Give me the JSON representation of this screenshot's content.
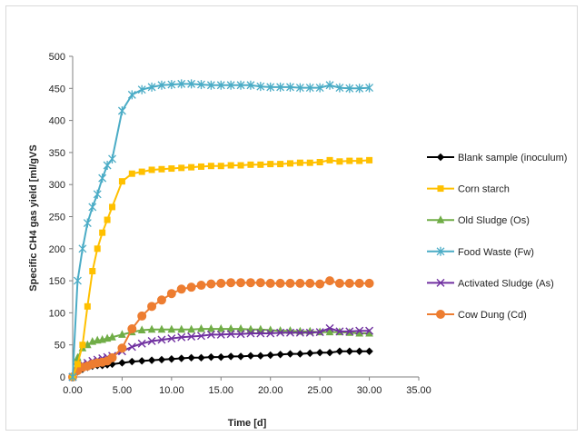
{
  "chart_data": {
    "type": "line",
    "title": "",
    "xlabel": "Time [d]",
    "ylabel": "Specific CH4 gas  yield [ml/gVS",
    "xlim": [
      0,
      35
    ],
    "ylim": [
      0,
      500
    ],
    "xticks": [
      "0.00",
      "5.00",
      "10.00",
      "15.00",
      "20.00",
      "25.00",
      "30.00",
      "35.00"
    ],
    "yticks": [
      "0",
      "50",
      "100",
      "150",
      "200",
      "250",
      "300",
      "350",
      "400",
      "450",
      "500"
    ],
    "grid": false,
    "legend_position": "right",
    "series": [
      {
        "name": "Blank sample (inoculum)",
        "color": "#000000",
        "marker": "diamond",
        "x": [
          0,
          0.5,
          1,
          1.5,
          2,
          2.5,
          3,
          3.5,
          4,
          5,
          6,
          7,
          8,
          9,
          10,
          11,
          12,
          13,
          14,
          15,
          16,
          17,
          18,
          19,
          20,
          21,
          22,
          23,
          24,
          25,
          26,
          27,
          28,
          29,
          30
        ],
        "y": [
          0,
          8,
          12,
          15,
          17,
          18,
          18,
          19,
          20,
          22,
          24,
          25,
          26,
          27,
          28,
          29,
          30,
          30,
          31,
          31,
          32,
          32,
          33,
          33,
          34,
          35,
          36,
          36,
          37,
          38,
          38,
          40,
          40,
          40,
          40
        ]
      },
      {
        "name": "Corn starch",
        "color": "#ffc000",
        "marker": "square",
        "x": [
          0,
          0.5,
          1,
          1.5,
          2,
          2.5,
          3,
          3.5,
          4,
          5,
          6,
          7,
          8,
          9,
          10,
          11,
          12,
          13,
          14,
          15,
          16,
          17,
          18,
          19,
          20,
          21,
          22,
          23,
          24,
          25,
          26,
          27,
          28,
          29,
          30
        ],
        "y": [
          0,
          20,
          50,
          110,
          165,
          200,
          225,
          245,
          265,
          305,
          317,
          320,
          323,
          324,
          325,
          326,
          327,
          328,
          329,
          329,
          330,
          330,
          331,
          331,
          332,
          332,
          333,
          334,
          334,
          335,
          338,
          336,
          337,
          337,
          338
        ]
      },
      {
        "name": "Old Sludge (Os)",
        "color": "#70ad47",
        "marker": "triangle",
        "x": [
          0,
          0.5,
          1,
          1.5,
          2,
          2.5,
          3,
          3.5,
          4,
          5,
          6,
          7,
          8,
          9,
          10,
          11,
          12,
          13,
          14,
          15,
          16,
          17,
          18,
          19,
          20,
          21,
          22,
          23,
          24,
          25,
          26,
          27,
          28,
          29,
          30
        ],
        "y": [
          0,
          30,
          45,
          50,
          55,
          57,
          58,
          60,
          62,
          66,
          70,
          73,
          74,
          74,
          74,
          74,
          74,
          75,
          75,
          75,
          75,
          75,
          74,
          74,
          73,
          72,
          72,
          71,
          71,
          70,
          70,
          70,
          69,
          68,
          68
        ]
      },
      {
        "name": "Food Waste (Fw)",
        "color": "#4bacc6",
        "marker": "star",
        "x": [
          0,
          0.5,
          1,
          1.5,
          2,
          2.5,
          3,
          3.5,
          4,
          5,
          6,
          7,
          8,
          9,
          10,
          11,
          12,
          13,
          14,
          15,
          16,
          17,
          18,
          19,
          20,
          21,
          22,
          23,
          24,
          25,
          26,
          27,
          28,
          29,
          30
        ],
        "y": [
          0,
          150,
          200,
          240,
          265,
          285,
          310,
          330,
          340,
          415,
          440,
          448,
          452,
          455,
          456,
          457,
          457,
          456,
          455,
          455,
          455,
          455,
          455,
          453,
          452,
          452,
          452,
          451,
          451,
          451,
          455,
          451,
          450,
          450,
          451
        ]
      },
      {
        "name": "Activated Sludge (As)",
        "color": "#7030a0",
        "marker": "x",
        "x": [
          0,
          0.5,
          1,
          1.5,
          2,
          2.5,
          3,
          3.5,
          4,
          5,
          6,
          7,
          8,
          9,
          10,
          11,
          12,
          13,
          14,
          15,
          16,
          17,
          18,
          19,
          20,
          21,
          22,
          23,
          24,
          25,
          26,
          27,
          28,
          29,
          30
        ],
        "y": [
          0,
          15,
          20,
          22,
          25,
          27,
          29,
          31,
          33,
          40,
          47,
          52,
          56,
          58,
          60,
          62,
          63,
          64,
          66,
          66,
          67,
          67,
          68,
          68,
          68,
          69,
          69,
          69,
          69,
          70,
          76,
          71,
          71,
          72,
          72
        ]
      },
      {
        "name": "Cow Dung (Cd)",
        "color": "#ed7d31",
        "marker": "circle",
        "x": [
          0,
          0.5,
          1,
          1.5,
          2,
          2.5,
          3,
          3.5,
          4,
          5,
          6,
          7,
          8,
          9,
          10,
          11,
          12,
          13,
          14,
          15,
          16,
          17,
          18,
          19,
          20,
          21,
          22,
          23,
          24,
          25,
          26,
          27,
          28,
          29,
          30
        ],
        "y": [
          0,
          10,
          15,
          17,
          20,
          22,
          23,
          25,
          30,
          45,
          75,
          95,
          110,
          120,
          130,
          137,
          140,
          143,
          145,
          146,
          147,
          147,
          147,
          147,
          146,
          146,
          146,
          146,
          146,
          145,
          150,
          146,
          146,
          146,
          146
        ]
      }
    ]
  }
}
